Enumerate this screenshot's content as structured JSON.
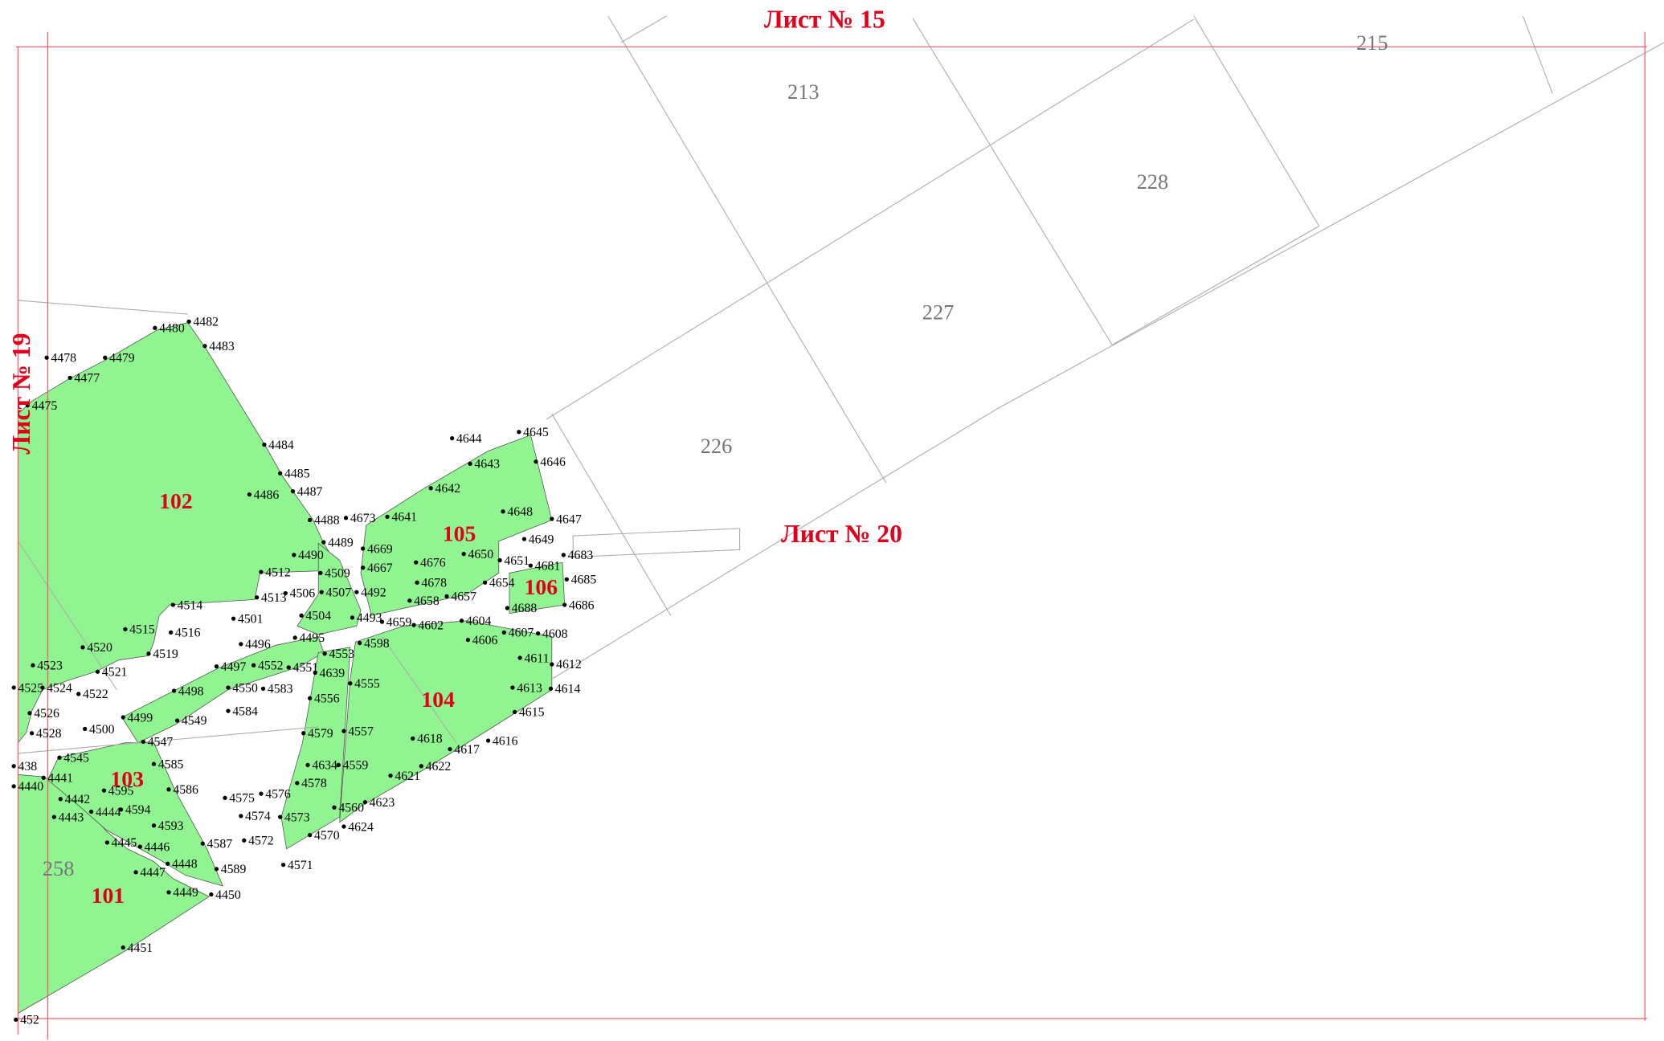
{
  "sheets": [
    "Лист № 15",
    "Лист № 19",
    "Лист № 20"
  ],
  "parcels": [
    "213",
    "215",
    "228",
    "227",
    "226",
    "258"
  ],
  "zones": [
    "101",
    "102",
    "103",
    "104",
    "105",
    "106"
  ],
  "points": [
    "4482",
    "4480",
    "4483",
    "4478",
    "4479",
    "4477",
    "4475",
    "4484",
    "4485",
    "4486",
    "4487",
    "4488",
    "4489",
    "4490",
    "4509",
    "4512",
    "4513",
    "4506",
    "4507",
    "4514",
    "4501",
    "4504",
    "4493",
    "4515",
    "4516",
    "4496",
    "4495",
    "4598",
    "4520",
    "4519",
    "4523",
    "4521",
    "4497",
    "4552",
    "4551",
    "4553",
    "4639",
    "4522",
    "4525",
    "4524",
    "4550",
    "4583",
    "4498",
    "4555",
    "4556",
    "4526",
    "4499",
    "4584",
    "4549",
    "4500",
    "4528",
    "4579",
    "4557",
    "4547",
    "4545",
    "4585",
    "4634",
    "4559",
    "438",
    "4440",
    "4441",
    "4595",
    "4578",
    "4586",
    "4442",
    "4575",
    "4576",
    "4594",
    "4443",
    "4444",
    "4560",
    "4623",
    "4574",
    "4573",
    "4593",
    "4624",
    "4570",
    "4445",
    "4446",
    "4587",
    "4572",
    "4448",
    "4447",
    "4589",
    "4571",
    "4449",
    "4450",
    "4451",
    "452",
    "4645",
    "4644",
    "4646",
    "4643",
    "4642",
    "4648",
    "4647",
    "4673",
    "4641",
    "4649",
    "4683",
    "4669",
    "4650",
    "4651",
    "4681",
    "4676",
    "4667",
    "4685",
    "4678",
    "4654",
    "4492",
    "4658",
    "4657",
    "4688",
    "4686",
    "4659",
    "4602",
    "4604",
    "4607",
    "4608",
    "4606",
    "4611",
    "4612",
    "4613",
    "4614",
    "4615",
    "4616",
    "4618",
    "4617",
    "4622",
    "4621"
  ]
}
